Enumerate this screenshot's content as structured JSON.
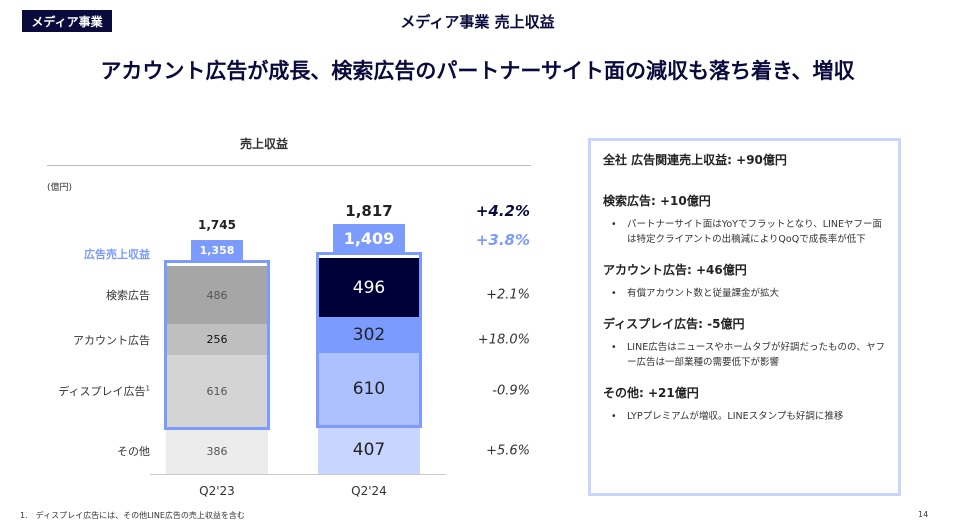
{
  "header": {
    "badge": "メディア事業",
    "title": "メディア事業 売上収益",
    "headline": "アカウント広告が成長、検索広告のパートナーサイト面の減収も落ち着き、増収"
  },
  "chart_data": {
    "type": "bar",
    "stacked": true,
    "title": "売上収益",
    "unit": "(億円)",
    "categories": [
      "Q2'23",
      "Q2'24"
    ],
    "series": [
      {
        "name": "その他",
        "values": [
          386,
          407
        ],
        "growth": "+5.6%",
        "colors": [
          "#ececec",
          "#c8d5ff"
        ]
      },
      {
        "name": "ディスプレイ広告",
        "name_sup": "1",
        "values": [
          616,
          610
        ],
        "growth": "-0.9%",
        "colors": [
          "#d4d4d4",
          "#adc0ff"
        ]
      },
      {
        "name": "アカウント広告",
        "values": [
          256,
          302
        ],
        "growth": "+18.0%",
        "colors": [
          "#bfbfbf",
          "#7b9bff"
        ]
      },
      {
        "name": "検索広告",
        "values": [
          486,
          496
        ],
        "growth": "+2.1%",
        "colors": [
          "#a6a6a6",
          "#000038"
        ]
      }
    ],
    "ad_total": {
      "name": "広告売上収益",
      "values": [
        "1,358",
        "1,409"
      ],
      "growth": "+3.8%"
    },
    "total": {
      "values": [
        "1,745",
        "1,817"
      ],
      "growth": "+4.2%"
    },
    "accent": "#7b9bff"
  },
  "panel": {
    "summary": "全社 広告関連売上収益: +90億円",
    "sections": [
      {
        "heading": "検索広告: +10億円",
        "bullet": "パートナーサイト面はYoYでフラットとなり、LINEヤフー面は特定クライアントの出稿減によりQoQで成長率が低下"
      },
      {
        "heading": "アカウント広告: +46億円",
        "bullet": "有償アカウント数と従量課金が拡大"
      },
      {
        "heading": "ディスプレイ広告: -5億円",
        "bullet": "LINE広告はニュースやホームタブが好調だったものの、ヤフー広告は一部業種の需要低下が影響"
      },
      {
        "heading": "その他: +21億円",
        "bullet": "LYPプレミアムが増収。LINEスタンプも好調に推移"
      }
    ]
  },
  "footnote": "1.　ディスプレイ広告には、その他LINE広告の売上収益を含む",
  "page_number": "14"
}
